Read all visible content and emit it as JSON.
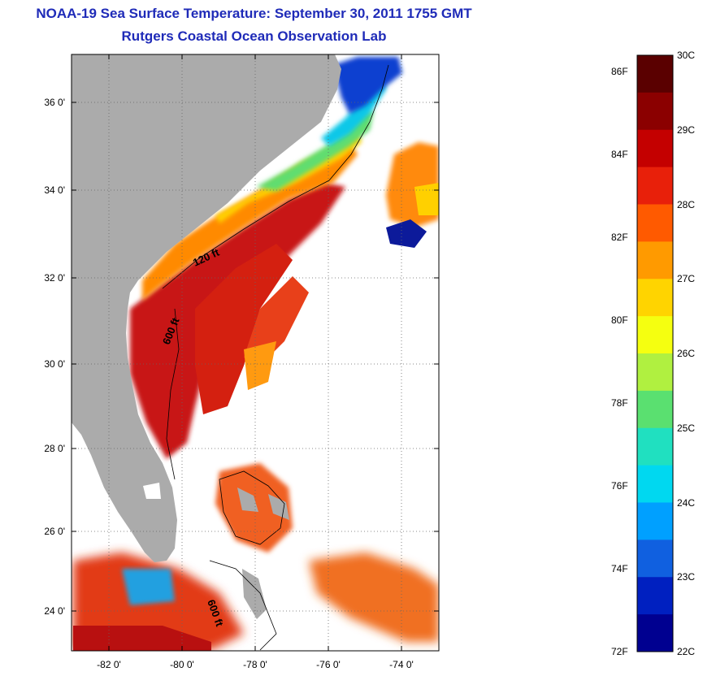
{
  "title": "NOAA-19 Sea Surface Temperature:  September 30, 2011 1755 GMT",
  "subtitle": "Rutgers Coastal Ocean Observation Lab",
  "lat_ticks": [
    "24 0'",
    "26 0'",
    "28 0'",
    "30 0'",
    "32 0'",
    "34 0'",
    "36 0'"
  ],
  "lon_ticks": [
    "-82 0'",
    "-80 0'",
    "-78 0'",
    "-76 0'",
    "-74 0'"
  ],
  "contours": [
    "120 ft",
    "600 ft",
    "600 ft"
  ],
  "colorbar": {
    "celsius": [
      "30C",
      "29C",
      "28C",
      "27C",
      "26C",
      "25C",
      "24C",
      "23C",
      "22C"
    ],
    "fahrenheit": [
      "86F",
      "84F",
      "82F",
      "80F",
      "78F",
      "76F",
      "74F",
      "72F"
    ],
    "colors": [
      "#5a0000",
      "#8b0000",
      "#c40000",
      "#e8200a",
      "#ff5a00",
      "#ff9a00",
      "#ffd400",
      "#f5ff10",
      "#b0f040",
      "#5ae070",
      "#20e0c0",
      "#00d8f0",
      "#00a0ff",
      "#1060e0",
      "#0020c0",
      "#000090"
    ]
  },
  "colors": {
    "land": "#ababab",
    "title": "#1f2bb8",
    "no_data": "#ffffff"
  }
}
